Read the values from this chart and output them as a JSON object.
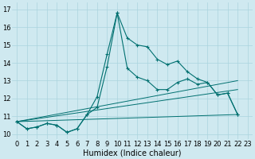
{
  "xlabel": "Humidex (Indice chaleur)",
  "xlim": [
    -0.5,
    23.5
  ],
  "ylim": [
    9.7,
    17.4
  ],
  "yticks": [
    10,
    11,
    12,
    13,
    14,
    15,
    16,
    17
  ],
  "xticks": [
    0,
    1,
    2,
    3,
    4,
    5,
    6,
    7,
    8,
    9,
    10,
    11,
    12,
    13,
    14,
    15,
    16,
    17,
    18,
    19,
    20,
    21,
    22,
    23
  ],
  "bg_color": "#cfe9f0",
  "line_color": "#007070",
  "grid_color": "#aad4de",
  "tick_fontsize": 6,
  "xlabel_fontsize": 7,
  "line1_x": [
    0,
    1,
    2,
    3,
    4,
    5,
    6,
    7,
    8,
    9,
    10,
    11,
    12,
    13,
    14,
    15,
    16,
    17,
    18,
    19,
    20,
    21,
    22
  ],
  "line1_y": [
    10.7,
    10.3,
    10.4,
    10.6,
    10.5,
    10.1,
    10.3,
    11.1,
    12.1,
    14.5,
    16.8,
    15.4,
    15.0,
    14.9,
    14.2,
    13.9,
    14.1,
    13.5,
    13.1,
    12.9,
    12.2,
    12.3,
    11.1
  ],
  "line2_x": [
    0,
    1,
    2,
    3,
    4,
    5,
    6,
    7,
    8,
    9,
    10,
    11,
    12,
    13,
    14,
    15,
    16,
    17,
    18,
    19,
    20,
    21,
    22
  ],
  "line2_y": [
    10.7,
    10.3,
    10.4,
    10.6,
    10.5,
    10.1,
    10.3,
    11.1,
    11.5,
    13.8,
    16.8,
    13.7,
    13.2,
    13.0,
    12.5,
    12.5,
    12.9,
    13.1,
    12.8,
    12.9,
    12.2,
    12.3,
    11.1
  ],
  "line3_x": [
    0,
    22
  ],
  "line3_y": [
    10.7,
    13.0
  ],
  "line4_x": [
    0,
    22
  ],
  "line4_y": [
    10.7,
    12.5
  ],
  "line5_x": [
    0,
    22
  ],
  "line5_y": [
    10.7,
    11.1
  ]
}
